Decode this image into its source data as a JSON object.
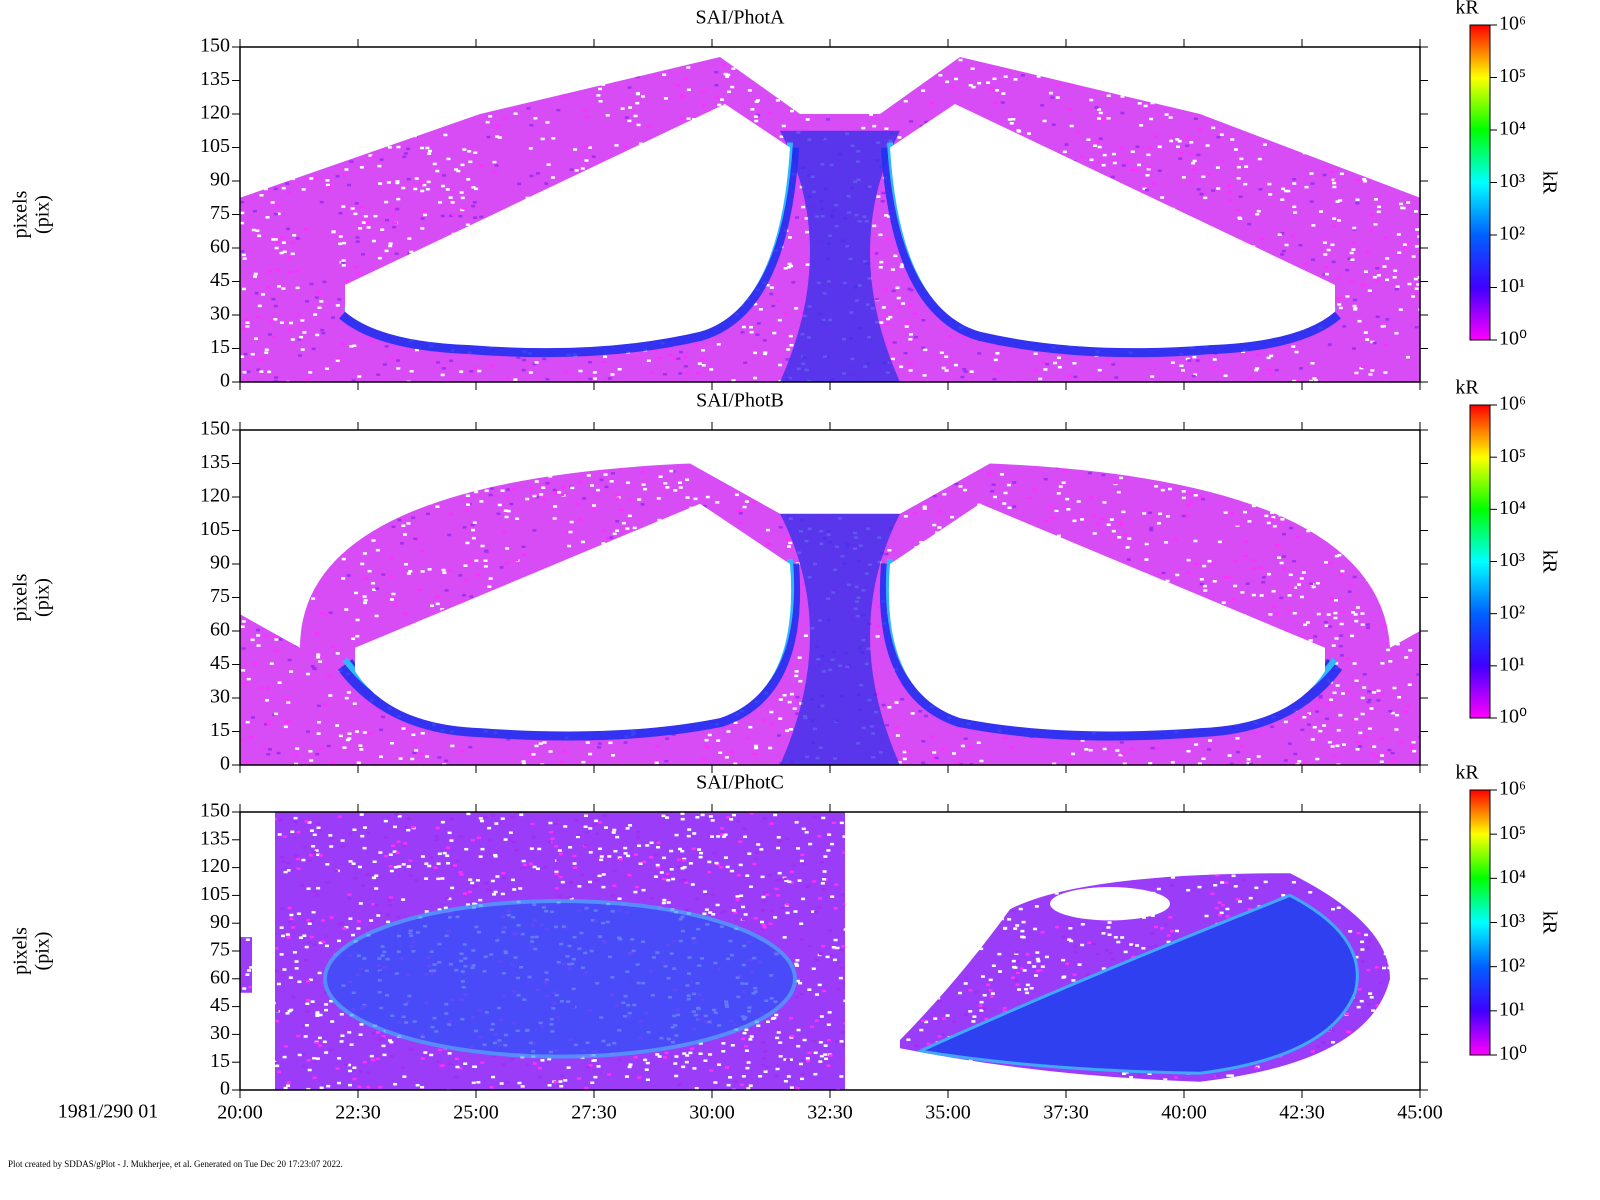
{
  "chart_data": [
    {
      "type": "heatmap",
      "title": "SAI/PhotA",
      "ylabel": [
        "pixels",
        "(pix)"
      ],
      "ylim": [
        0,
        150
      ],
      "yticks": [
        0,
        15,
        30,
        45,
        60,
        75,
        90,
        105,
        120,
        135,
        150
      ],
      "xlim": [
        20,
        45
      ],
      "xticks": [
        20,
        22.5,
        25,
        27.5,
        30,
        32.5,
        35,
        37.5,
        40,
        42.5,
        45
      ],
      "colorbar": {
        "title": "kR",
        "label": "kR",
        "clim": [
          1,
          1000000
        ],
        "log": true,
        "colors": [
          "#ff00ff",
          "#4000ff",
          "#0060ff",
          "#00ffff",
          "#00ff00",
          "#ffff00",
          "#ff0000"
        ],
        "ticks": [
          {
            "value": 1,
            "label": "10⁰"
          },
          {
            "value": 10,
            "label": "10¹"
          },
          {
            "value": 100,
            "label": "10²"
          },
          {
            "value": 1000,
            "label": "10³"
          },
          {
            "value": 10000,
            "label": "10⁴"
          },
          {
            "value": 100000,
            "label": "10⁵"
          },
          {
            "value": 1000000,
            "label": "10⁶"
          }
        ]
      }
    },
    {
      "type": "heatmap",
      "title": "SAI/PhotB",
      "ylabel": [
        "pixels",
        "(pix)"
      ],
      "ylim": [
        0,
        150
      ],
      "yticks": [
        0,
        15,
        30,
        45,
        60,
        75,
        90,
        105,
        120,
        135,
        150
      ],
      "xlim": [
        20,
        45
      ],
      "xticks": [
        20,
        22.5,
        25,
        27.5,
        30,
        32.5,
        35,
        37.5,
        40,
        42.5,
        45
      ],
      "colorbar": {
        "title": "kR",
        "label": "kR",
        "clim": [
          1,
          1000000
        ],
        "log": true,
        "colors": [
          "#ff00ff",
          "#4000ff",
          "#0060ff",
          "#00ffff",
          "#00ff00",
          "#ffff00",
          "#ff0000"
        ],
        "ticks": [
          {
            "value": 1,
            "label": "10⁰"
          },
          {
            "value": 10,
            "label": "10¹"
          },
          {
            "value": 100,
            "label": "10²"
          },
          {
            "value": 1000,
            "label": "10³"
          },
          {
            "value": 10000,
            "label": "10⁴"
          },
          {
            "value": 100000,
            "label": "10⁵"
          },
          {
            "value": 1000000,
            "label": "10⁶"
          }
        ]
      }
    },
    {
      "type": "heatmap",
      "title": "SAI/PhotC",
      "ylabel": [
        "pixels",
        "(pix)"
      ],
      "ylim": [
        0,
        150
      ],
      "yticks": [
        0,
        15,
        30,
        45,
        60,
        75,
        90,
        105,
        120,
        135,
        150
      ],
      "xlim": [
        20,
        45
      ],
      "xticks": [
        {
          "value": 20,
          "label": "20:00"
        },
        {
          "value": 22.5,
          "label": "22:30"
        },
        {
          "value": 25,
          "label": "25:00"
        },
        {
          "value": 27.5,
          "label": "27:30"
        },
        {
          "value": 30,
          "label": "30:00"
        },
        {
          "value": 32.5,
          "label": "32:30"
        },
        {
          "value": 35,
          "label": "35:00"
        },
        {
          "value": 37.5,
          "label": "37:30"
        },
        {
          "value": 40,
          "label": "40:00"
        },
        {
          "value": 42.5,
          "label": "42:30"
        },
        {
          "value": 45,
          "label": "45:00"
        }
      ],
      "colorbar": {
        "title": "kR",
        "label": "kR",
        "clim": [
          1,
          1000000
        ],
        "log": true,
        "colors": [
          "#ff00ff",
          "#4000ff",
          "#0060ff",
          "#00ffff",
          "#00ff00",
          "#ffff00",
          "#ff0000"
        ],
        "ticks": [
          {
            "value": 1,
            "label": "10⁰"
          },
          {
            "value": 10,
            "label": "10¹"
          },
          {
            "value": 100,
            "label": "10²"
          },
          {
            "value": 1000,
            "label": "10³"
          },
          {
            "value": 10000,
            "label": "10⁴"
          },
          {
            "value": 100000,
            "label": "10⁵"
          },
          {
            "value": 1000000,
            "label": "10⁶"
          }
        ]
      }
    }
  ],
  "date_label": "1981/290 01",
  "footer": "Plot created by SDDAS/gPlot - J. Mukherjee, et al.  Generated on Tue Dec 20 17:23:07 2022."
}
